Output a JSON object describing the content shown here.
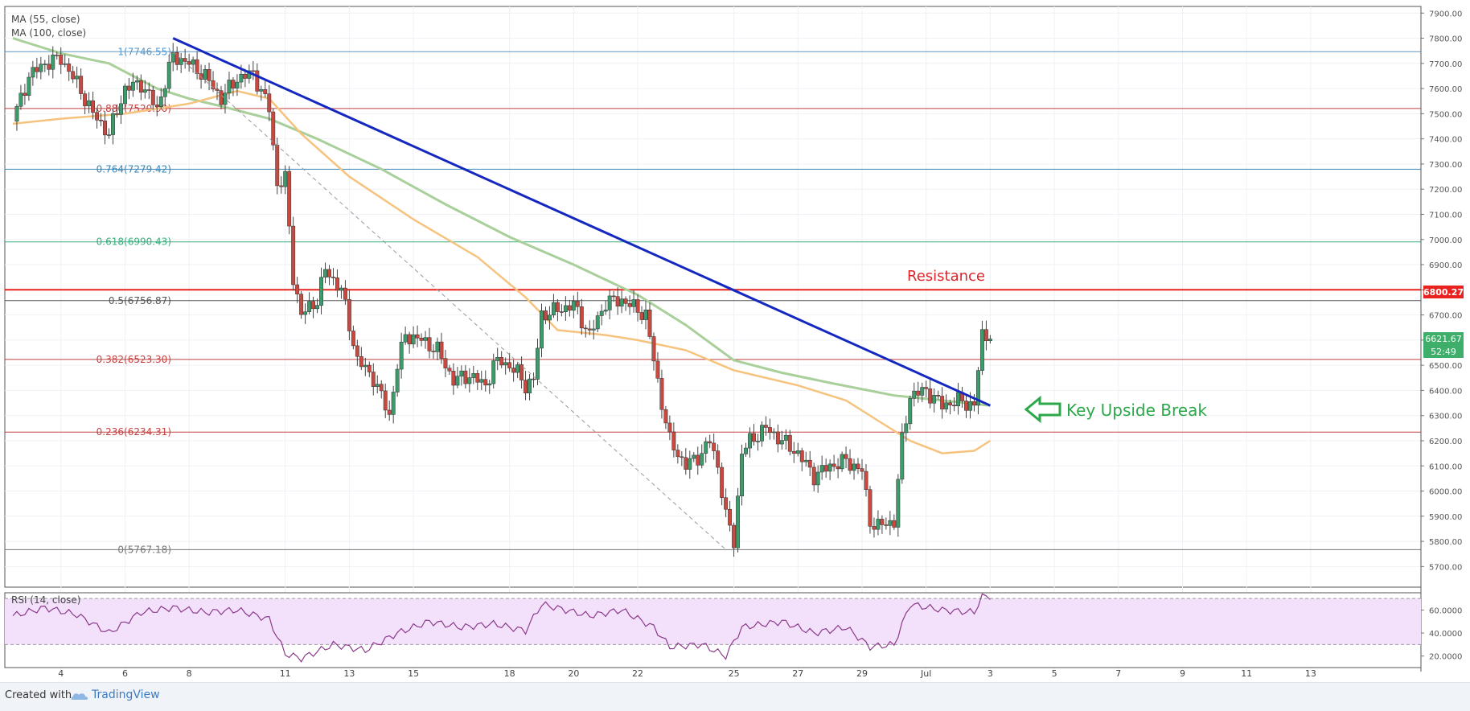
{
  "chart_data": [
    {
      "type": "candlestick",
      "title": "",
      "x_ticks": [
        "4",
        "6",
        "8",
        "11",
        "13",
        "15",
        "18",
        "20",
        "22",
        "25",
        "27",
        "29",
        "Jul",
        "3",
        "5",
        "7",
        "9",
        "11",
        "13"
      ],
      "x_tick_dates": [
        "2018-06-04",
        "2018-06-06",
        "2018-06-08",
        "2018-06-11",
        "2018-06-13",
        "2018-06-15",
        "2018-06-18",
        "2018-06-20",
        "2018-06-22",
        "2018-06-25",
        "2018-06-27",
        "2018-06-29",
        "2018-07-01",
        "2018-07-03",
        "2018-07-05",
        "2018-07-07",
        "2018-07-09",
        "2018-07-11",
        "2018-07-13"
      ],
      "ylim": [
        5650,
        7920
      ],
      "y_ticks": [
        "5700.00",
        "5800.00",
        "5900.00",
        "6000.00",
        "6100.00",
        "6200.00",
        "6300.00",
        "6400.00",
        "6500.00",
        "6600.00",
        "6700.00",
        "6800.00",
        "6900.00",
        "7000.00",
        "7100.00",
        "7200.00",
        "7300.00",
        "7400.00",
        "7500.00",
        "7600.00",
        "7700.00",
        "7800.00",
        "7900.00"
      ],
      "price_path": [
        [
          "2018-06-02 12:00",
          7470
        ],
        [
          "2018-06-03 00:00",
          7650
        ],
        [
          "2018-06-03 12:00",
          7700
        ],
        [
          "2018-06-04 00:00",
          7720
        ],
        [
          "2018-06-04 12:00",
          7620
        ],
        [
          "2018-06-05 00:00",
          7500
        ],
        [
          "2018-06-05 12:00",
          7420
        ],
        [
          "2018-06-06 00:00",
          7600
        ],
        [
          "2018-06-06 12:00",
          7620
        ],
        [
          "2018-06-07 00:00",
          7520
        ],
        [
          "2018-06-07 12:00",
          7730
        ],
        [
          "2018-06-08 00:00",
          7700
        ],
        [
          "2018-06-08 12:00",
          7650
        ],
        [
          "2018-06-09 00:00",
          7560
        ],
        [
          "2018-06-09 12:00",
          7640
        ],
        [
          "2018-06-10 00:00",
          7660
        ],
        [
          "2018-06-10 12:00",
          7520
        ],
        [
          "2018-06-10 18:00",
          7220
        ],
        [
          "2018-06-11 00:00",
          7240
        ],
        [
          "2018-06-11 06:00",
          6850
        ],
        [
          "2018-06-11 12:00",
          6700
        ],
        [
          "2018-06-12 00:00",
          6760
        ],
        [
          "2018-06-12 06:00",
          6880
        ],
        [
          "2018-06-12 18:00",
          6800
        ],
        [
          "2018-06-13 06:00",
          6520
        ],
        [
          "2018-06-13 18:00",
          6450
        ],
        [
          "2018-06-14 06:00",
          6300
        ],
        [
          "2018-06-14 12:00",
          6500
        ],
        [
          "2018-06-14 18:00",
          6620
        ],
        [
          "2018-06-15 06:00",
          6600
        ],
        [
          "2018-06-15 18:00",
          6560
        ],
        [
          "2018-06-16 06:00",
          6440
        ],
        [
          "2018-06-16 18:00",
          6460
        ],
        [
          "2018-06-17 06:00",
          6420
        ],
        [
          "2018-06-17 12:00",
          6500
        ],
        [
          "2018-06-17 18:00",
          6520
        ],
        [
          "2018-06-18 06:00",
          6470
        ],
        [
          "2018-06-18 12:00",
          6420
        ],
        [
          "2018-06-18 18:00",
          6440
        ],
        [
          "2018-06-19 00:00",
          6700
        ],
        [
          "2018-06-19 12:00",
          6720
        ],
        [
          "2018-06-20 00:00",
          6740
        ],
        [
          "2018-06-20 12:00",
          6620
        ],
        [
          "2018-06-21 00:00",
          6750
        ],
        [
          "2018-06-21 12:00",
          6760
        ],
        [
          "2018-06-22 00:00",
          6720
        ],
        [
          "2018-06-22 06:00",
          6700
        ],
        [
          "2018-06-22 12:00",
          6520
        ],
        [
          "2018-06-22 18:00",
          6350
        ],
        [
          "2018-06-23 00:00",
          6200
        ],
        [
          "2018-06-23 12:00",
          6100
        ],
        [
          "2018-06-24 00:00",
          6150
        ],
        [
          "2018-06-24 06:00",
          6200
        ],
        [
          "2018-06-24 12:00",
          6100
        ],
        [
          "2018-06-24 18:00",
          5900
        ],
        [
          "2018-06-25 00:00",
          5800
        ],
        [
          "2018-06-25 06:00",
          6150
        ],
        [
          "2018-06-25 12:00",
          6200
        ],
        [
          "2018-06-26 00:00",
          6250
        ],
        [
          "2018-06-26 12:00",
          6200
        ],
        [
          "2018-06-27 00:00",
          6150
        ],
        [
          "2018-06-27 12:00",
          6060
        ],
        [
          "2018-06-28 00:00",
          6100
        ],
        [
          "2018-06-28 12:00",
          6120
        ],
        [
          "2018-06-29 00:00",
          6080
        ],
        [
          "2018-06-29 06:00",
          5880
        ],
        [
          "2018-06-29 12:00",
          5860
        ],
        [
          "2018-06-30 00:00",
          5880
        ],
        [
          "2018-06-30 06:00",
          6200
        ],
        [
          "2018-06-30 12:00",
          6380
        ],
        [
          "2018-07-01 00:00",
          6400
        ],
        [
          "2018-07-01 12:00",
          6340
        ],
        [
          "2018-07-02 00:00",
          6360
        ],
        [
          "2018-07-02 12:00",
          6340
        ],
        [
          "2018-07-02 18:00",
          6620
        ],
        [
          "2018-07-03 00:00",
          6622
        ]
      ],
      "ma_55": [
        [
          "2018-06-02 12:00",
          7460
        ],
        [
          "2018-06-04 00:00",
          7480
        ],
        [
          "2018-06-06 00:00",
          7500
        ],
        [
          "2018-06-08 00:00",
          7540
        ],
        [
          "2018-06-09 12:00",
          7590
        ],
        [
          "2018-06-10 12:00",
          7560
        ],
        [
          "2018-06-11 12:00",
          7420
        ],
        [
          "2018-06-13 00:00",
          7250
        ],
        [
          "2018-06-15 00:00",
          7080
        ],
        [
          "2018-06-17 00:00",
          6930
        ],
        [
          "2018-06-18 12:00",
          6770
        ],
        [
          "2018-06-19 12:00",
          6640
        ],
        [
          "2018-06-21 00:00",
          6620
        ],
        [
          "2018-06-22 00:00",
          6600
        ],
        [
          "2018-06-23 12:00",
          6560
        ],
        [
          "2018-06-25 00:00",
          6480
        ],
        [
          "2018-06-27 00:00",
          6420
        ],
        [
          "2018-06-28 12:00",
          6360
        ],
        [
          "2018-06-29 12:00",
          6280
        ],
        [
          "2018-06-30 12:00",
          6200
        ],
        [
          "2018-07-01 12:00",
          6150
        ],
        [
          "2018-07-02 12:00",
          6160
        ],
        [
          "2018-07-03 00:00",
          6200
        ]
      ],
      "ma_100": [
        [
          "2018-06-02 12:00",
          7800
        ],
        [
          "2018-06-04 00:00",
          7740
        ],
        [
          "2018-06-05 12:00",
          7700
        ],
        [
          "2018-06-07 00:00",
          7600
        ],
        [
          "2018-06-08 00:00",
          7560
        ],
        [
          "2018-06-09 00:00",
          7530
        ],
        [
          "2018-06-10 12:00",
          7480
        ],
        [
          "2018-06-12 00:00",
          7400
        ],
        [
          "2018-06-14 00:00",
          7280
        ],
        [
          "2018-06-16 00:00",
          7140
        ],
        [
          "2018-06-18 00:00",
          7010
        ],
        [
          "2018-06-20 00:00",
          6900
        ],
        [
          "2018-06-22 00:00",
          6780
        ],
        [
          "2018-06-23 12:00",
          6660
        ],
        [
          "2018-06-25 00:00",
          6520
        ],
        [
          "2018-06-26 12:00",
          6470
        ],
        [
          "2018-06-28 00:00",
          6430
        ],
        [
          "2018-06-30 00:00",
          6380
        ],
        [
          "2018-07-01 12:00",
          6360
        ],
        [
          "2018-07-03 00:00",
          6340
        ]
      ],
      "rsi": [
        [
          "2018-06-02 12:00",
          55
        ],
        [
          "2018-06-03 12:00",
          62
        ],
        [
          "2018-06-04 12:00",
          56
        ],
        [
          "2018-06-05 12:00",
          40
        ],
        [
          "2018-06-06 12:00",
          58
        ],
        [
          "2018-06-07 12:00",
          62
        ],
        [
          "2018-06-08 12:00",
          58
        ],
        [
          "2018-06-09 12:00",
          60
        ],
        [
          "2018-06-10 12:00",
          52
        ],
        [
          "2018-06-11 00:00",
          22
        ],
        [
          "2018-06-11 12:00",
          18
        ],
        [
          "2018-06-12 12:00",
          30
        ],
        [
          "2018-06-13 12:00",
          25
        ],
        [
          "2018-06-14 12:00",
          40
        ],
        [
          "2018-06-15 12:00",
          50
        ],
        [
          "2018-06-16 12:00",
          45
        ],
        [
          "2018-06-17 12:00",
          48
        ],
        [
          "2018-06-18 12:00",
          42
        ],
        [
          "2018-06-19 00:00",
          65
        ],
        [
          "2018-06-20 12:00",
          55
        ],
        [
          "2018-06-21 12:00",
          60
        ],
        [
          "2018-06-22 12:00",
          45
        ],
        [
          "2018-06-23 00:00",
          28
        ],
        [
          "2018-06-24 00:00",
          30
        ],
        [
          "2018-06-24 18:00",
          20
        ],
        [
          "2018-06-25 06:00",
          45
        ],
        [
          "2018-06-26 12:00",
          50
        ],
        [
          "2018-06-27 12:00",
          40
        ],
        [
          "2018-06-28 12:00",
          45
        ],
        [
          "2018-06-29 06:00",
          28
        ],
        [
          "2018-06-30 00:00",
          30
        ],
        [
          "2018-06-30 12:00",
          65
        ],
        [
          "2018-07-01 12:00",
          60
        ],
        [
          "2018-07-02 12:00",
          58
        ],
        [
          "2018-07-02 18:00",
          72
        ],
        [
          "2018-07-03 00:00",
          72
        ]
      ],
      "indicators": [
        "MA (55, close)",
        "MA (100, close)"
      ],
      "fib_levels": [
        {
          "label": "1(7746.55)",
          "value": 7746.55,
          "color": "#5a98c9"
        },
        {
          "label": "0.886(7520.90)",
          "value": 7520.9,
          "color": "#c24242"
        },
        {
          "label": "0.764(7279.42)",
          "value": 7279.42,
          "color": "#3a86b5"
        },
        {
          "label": "0.618(6990.43)",
          "value": 6990.43,
          "color": "#3aad7c"
        },
        {
          "label": "0.5(6756.87)",
          "value": 6756.87,
          "color": "#555555"
        },
        {
          "label": "0.382(6523.30)",
          "value": 6523.3,
          "color": "#c24242"
        },
        {
          "label": "0.236(6234.31)",
          "value": 6234.31,
          "color": "#c24242"
        },
        {
          "label": "0(5767.18)",
          "value": 5767.18,
          "color": "#777777"
        }
      ],
      "resistance": {
        "label": "Resistance",
        "value": 6800.27,
        "tag": "6800.27",
        "color": "#e8231f"
      },
      "last_price": {
        "value": 6621.67,
        "tag": "6621.67",
        "countdown": "52:49",
        "color": "#3fae6a"
      },
      "trendline": {
        "from": [
          "2018-06-07 12:00",
          7800
        ],
        "to": [
          "2018-07-03 00:00",
          6340
        ],
        "color": "#1428c0"
      },
      "fib_diagonal": {
        "from": [
          "2018-06-07 12:00",
          7746.55
        ],
        "to": [
          "2018-06-24 18:00",
          5767.18
        ]
      },
      "annotation": {
        "label": "Key Upside Break",
        "color": "#2ca84a"
      },
      "colors": {
        "up": "#3d9b6b",
        "down": "#c8493f",
        "ma_55": "#f6c37e",
        "ma_100": "#a9cf9a",
        "rsi": "#8b3a8b",
        "rsi_band": "#f3e0fb"
      },
      "rsi_panel": {
        "label": "RSI (14, close)",
        "y_ticks": [
          "20.0000",
          "40.0000",
          "60.0000"
        ],
        "ylim": [
          10,
          75
        ],
        "bands": [
          30,
          70
        ]
      }
    }
  ],
  "footer": {
    "created_with": "Created with",
    "brand": "TradingView"
  }
}
